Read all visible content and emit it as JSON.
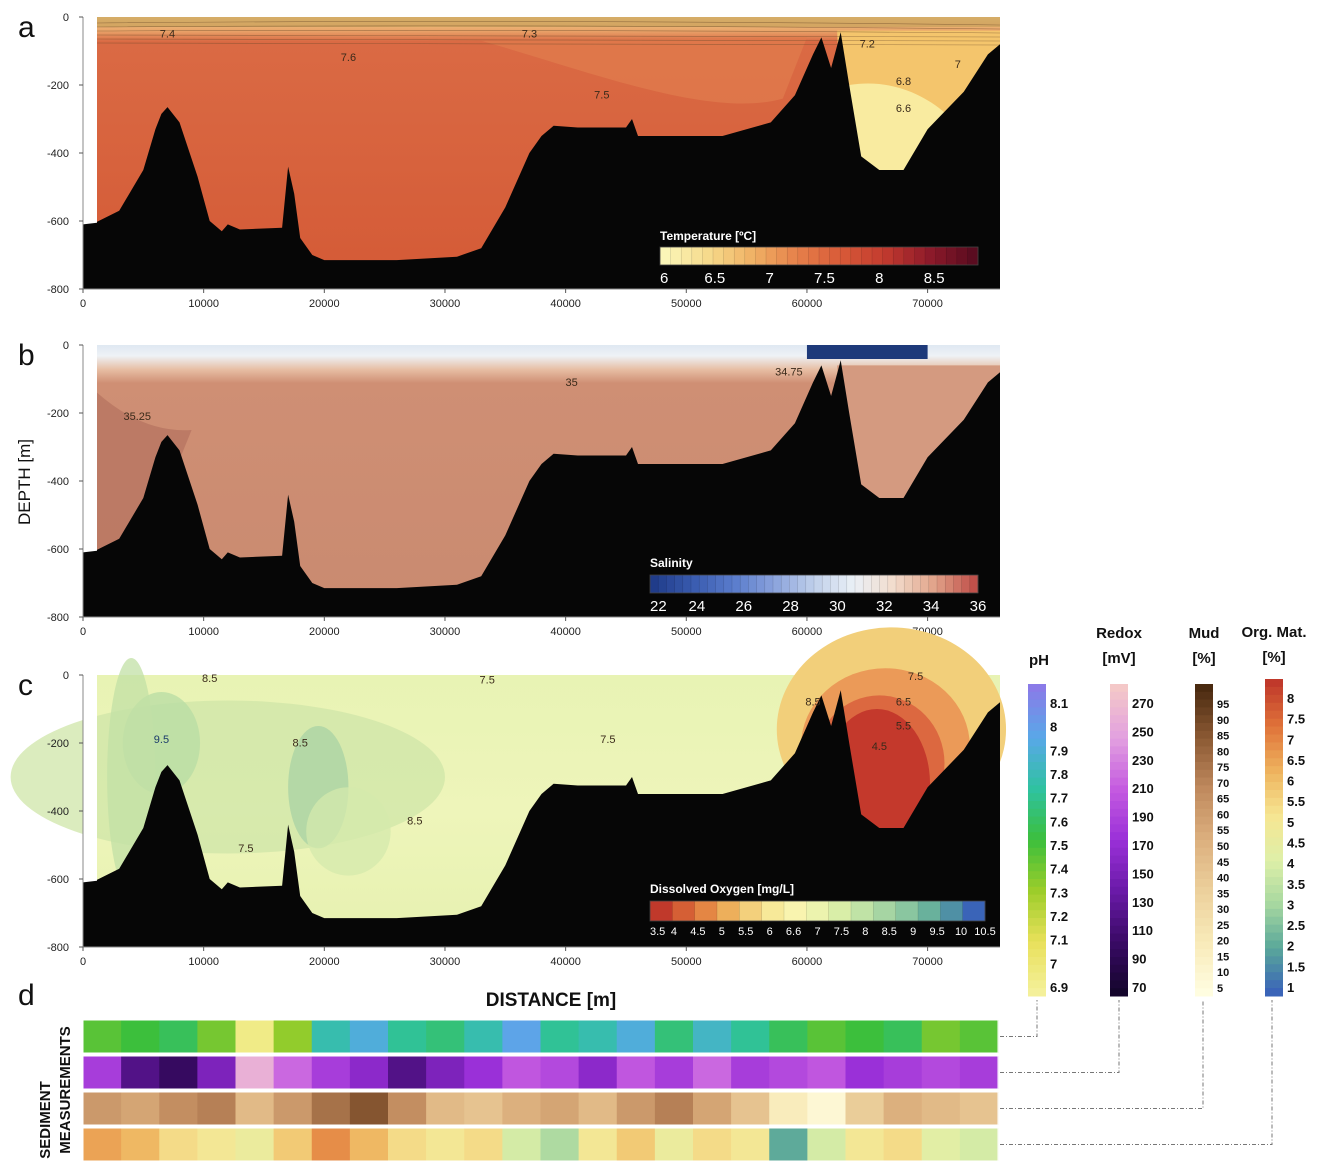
{
  "panels": [
    {
      "letter": "a",
      "colorbar_title": "Temperature [ºC]",
      "colorbar_ticks": [
        "6",
        "6.5",
        "7",
        "7.5",
        "8",
        "8.5"
      ],
      "contour_labels": [
        "7.4",
        "7.3",
        "7.6",
        "7.5",
        "7.2",
        "7",
        "6.8",
        "6.6"
      ]
    },
    {
      "letter": "b",
      "colorbar_title": "Salinity",
      "colorbar_ticks": [
        "22",
        "24",
        "26",
        "28",
        "30",
        "32",
        "34",
        "36"
      ],
      "contour_labels": [
        "35.25",
        "35",
        "34.75"
      ]
    },
    {
      "letter": "c",
      "colorbar_title": "Dissolved Oxygen [mg/L]",
      "colorbar_ticks": [
        "3.5",
        "4",
        "4.5",
        "5",
        "5.5",
        "6",
        "6.6",
        "7",
        "7.5",
        "8",
        "8.5",
        "9",
        "9.5",
        "10",
        "10.5"
      ],
      "contour_labels": [
        "8.5",
        "7.5",
        "9.5",
        "8.5",
        "7.5",
        "8.5",
        "7.5",
        "8.5",
        "7.5",
        "6.5",
        "5.5",
        "4.5"
      ]
    }
  ],
  "panel_d_letter": "d",
  "y_axis_label": "DEPTH [m]",
  "x_axis_label": "DISTANCE [m]",
  "sediment_label": [
    "SEDIMENT",
    "MEASUREMENTS"
  ],
  "sediment_scales": [
    {
      "title": [
        "pH"
      ],
      "ticks": [
        "8.1",
        "8",
        "7.9",
        "7.8",
        "7.7",
        "7.6",
        "7.5",
        "7.4",
        "7.3",
        "7.2",
        "7.1",
        "7",
        "6.9"
      ],
      "stops": [
        "#8a7be8",
        "#58a8e8",
        "#2fc2a0",
        "#3cbf3c",
        "#9ccd2a",
        "#e8e05a",
        "#f4f09a"
      ]
    },
    {
      "title": [
        "Redox",
        "[mV]"
      ],
      "ticks": [
        "270",
        "250",
        "230",
        "210",
        "190",
        "170",
        "150",
        "130",
        "110",
        "90",
        "70"
      ],
      "stops": [
        "#f4c8c8",
        "#e2a0e0",
        "#c45ae0",
        "#9a30d8",
        "#6a1aa8",
        "#3a0a66",
        "#14052c"
      ]
    },
    {
      "title": [
        "Mud",
        "[%]"
      ],
      "ticks": [
        "95",
        "90",
        "85",
        "80",
        "75",
        "70",
        "65",
        "60",
        "55",
        "50",
        "45",
        "40",
        "35",
        "30",
        "25",
        "20",
        "15",
        "10",
        "5"
      ],
      "stops": [
        "#4a2a10",
        "#8c5a34",
        "#c08a5e",
        "#dcb07e",
        "#ecd09c",
        "#f8eab8",
        "#fffde0"
      ]
    },
    {
      "title": [
        "Org. Mat.",
        "[%]"
      ],
      "ticks": [
        "8",
        "7.5",
        "7",
        "6.5",
        "6",
        "5.5",
        "5",
        "4.5",
        "4",
        "3.5",
        "3",
        "2.5",
        "2",
        "1.5",
        "1"
      ],
      "stops": [
        "#c0392b",
        "#e0743a",
        "#eeb35e",
        "#f6e592",
        "#dff0a8",
        "#a8d8a0",
        "#5aa89a",
        "#3a64b8"
      ]
    }
  ],
  "chart_data": [
    {
      "type": "heatmap",
      "title": "a",
      "variable": "Temperature [ºC]",
      "xlabel": "DISTANCE [m]",
      "ylabel": "DEPTH [m]",
      "xlim": [
        0,
        76000
      ],
      "ylim": [
        -800,
        0
      ],
      "x_ticks": [
        0,
        10000,
        20000,
        30000,
        40000,
        50000,
        60000,
        70000
      ],
      "y_ticks": [
        0,
        -200,
        -400,
        -600,
        -800
      ],
      "colorbar_range": [
        6,
        8.9
      ],
      "colorbar_ticks": [
        6,
        6.5,
        7,
        7.5,
        8,
        8.5
      ],
      "contours": [
        {
          "value": 7.4,
          "x": 7000,
          "y": -60
        },
        {
          "value": 7.3,
          "x": 37000,
          "y": -60
        },
        {
          "value": 7.6,
          "x": 22000,
          "y": -130
        },
        {
          "value": 7.5,
          "x": 43000,
          "y": -240
        },
        {
          "value": 7.2,
          "x": 65000,
          "y": -90
        },
        {
          "value": 7,
          "x": 72500,
          "y": -150
        },
        {
          "value": 6.8,
          "x": 68000,
          "y": -200
        },
        {
          "value": 6.6,
          "x": 68000,
          "y": -280
        }
      ]
    },
    {
      "type": "heatmap",
      "title": "b",
      "variable": "Salinity",
      "xlabel": "DISTANCE [m]",
      "ylabel": "DEPTH [m]",
      "xlim": [
        0,
        76000
      ],
      "ylim": [
        -800,
        0
      ],
      "x_ticks": [
        0,
        10000,
        20000,
        30000,
        40000,
        50000,
        60000,
        70000
      ],
      "y_ticks": [
        0,
        -200,
        -400,
        -600,
        -800
      ],
      "colorbar_range": [
        22,
        36
      ],
      "colorbar_ticks": [
        22,
        24,
        26,
        28,
        30,
        32,
        34,
        36
      ],
      "contours": [
        {
          "value": 35.25,
          "x": 4500,
          "y": -220
        },
        {
          "value": 35,
          "x": 40500,
          "y": -120
        },
        {
          "value": 34.75,
          "x": 58500,
          "y": -90
        }
      ]
    },
    {
      "type": "heatmap",
      "title": "c",
      "variable": "Dissolved Oxygen [mg/L]",
      "xlabel": "DISTANCE [m]",
      "ylabel": "DEPTH [m]",
      "xlim": [
        0,
        76000
      ],
      "ylim": [
        -800,
        0
      ],
      "x_ticks": [
        0,
        10000,
        20000,
        30000,
        40000,
        50000,
        60000,
        70000
      ],
      "y_ticks": [
        0,
        -200,
        -400,
        -600,
        -800
      ],
      "colorbar_range": [
        3.5,
        10.5
      ],
      "colorbar_ticks": [
        3.5,
        4,
        4.5,
        5,
        5.5,
        6,
        6.6,
        7,
        7.5,
        8,
        8.5,
        9,
        9.5,
        10,
        10.5
      ],
      "contours": [
        {
          "value": 8.5,
          "x": 10500,
          "y": -20
        },
        {
          "value": 7.5,
          "x": 33500,
          "y": -25
        },
        {
          "value": 9.5,
          "x": 6500,
          "y": -200
        },
        {
          "value": 8.5,
          "x": 18000,
          "y": -210
        },
        {
          "value": 7.5,
          "x": 43500,
          "y": -200
        },
        {
          "value": 8.5,
          "x": 27500,
          "y": -440
        },
        {
          "value": 7.5,
          "x": 13500,
          "y": -520
        },
        {
          "value": 8.5,
          "x": 60500,
          "y": -90
        },
        {
          "value": 7.5,
          "x": 69000,
          "y": -15
        },
        {
          "value": 6.5,
          "x": 68000,
          "y": -90
        },
        {
          "value": 5.5,
          "x": 68000,
          "y": -160
        },
        {
          "value": 4.5,
          "x": 66000,
          "y": -220
        }
      ]
    },
    {
      "type": "heatmap",
      "title": "d",
      "variable": "SEDIMENT MEASUREMENTS",
      "rows": [
        "pH",
        "Redox [mV]",
        "Mud [%]",
        "Org. Mat. [%]"
      ],
      "xlim": [
        0,
        76000
      ],
      "bathymetry": {
        "x": [
          0,
          1000,
          3000,
          5000,
          6000,
          6500,
          7000,
          8000,
          9500,
          10500,
          11500,
          12000,
          13000,
          16500,
          17000,
          17500,
          18000,
          19000,
          20000,
          26000,
          31000,
          33000,
          35000,
          37000,
          38000,
          39000,
          41000,
          45000,
          45500,
          46000,
          53000,
          57000,
          59000,
          60500,
          61200,
          62000,
          62800,
          63500,
          64500,
          66000,
          68000,
          70000,
          73000,
          75000,
          76000
        ],
        "depth": [
          -610,
          -605,
          -570,
          -450,
          -330,
          -285,
          -265,
          -310,
          -470,
          -600,
          -630,
          -610,
          -625,
          -620,
          -440,
          -520,
          -650,
          -700,
          -715,
          -715,
          -705,
          -680,
          -560,
          -400,
          -350,
          -320,
          -325,
          -325,
          -300,
          -350,
          -350,
          -310,
          -230,
          -110,
          -60,
          -150,
          -45,
          -200,
          -410,
          -450,
          -450,
          -330,
          -220,
          -110,
          -80
        ]
      }
    }
  ]
}
